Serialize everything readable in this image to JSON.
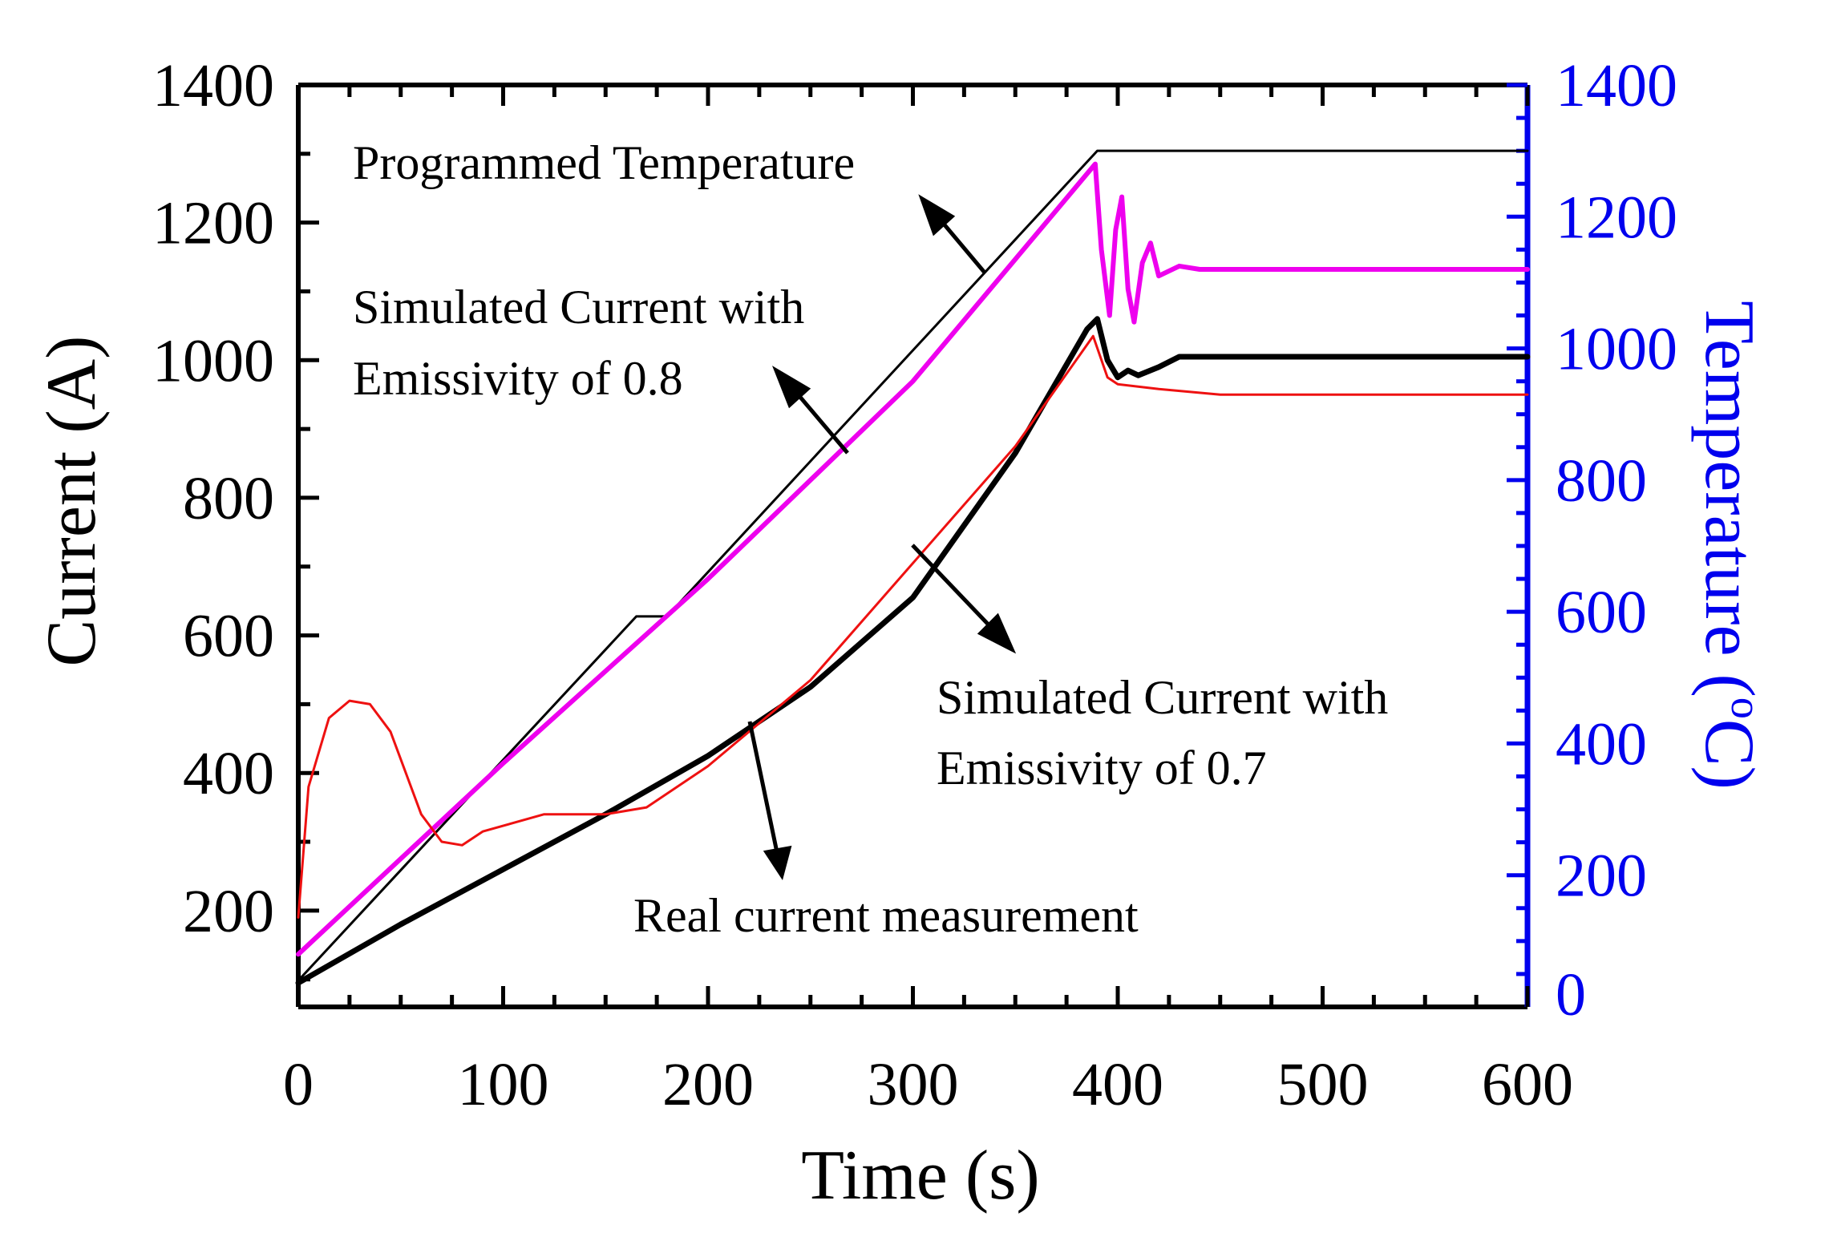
{
  "chart_data": {
    "type": "line",
    "xlabel": "Time (s)",
    "ylabel_left": "Current (A)",
    "ylabel_right_prefix": "Temperature (",
    "ylabel_right_sup": "o",
    "ylabel_right_suffix": "C)",
    "xlim": [
      0,
      600
    ],
    "ylim_left": [
      60,
      1400
    ],
    "ylim_right": [
      0,
      1400
    ],
    "x_ticks": [
      "0",
      "100",
      "200",
      "300",
      "400",
      "500",
      "600"
    ],
    "y_left_ticks": [
      "200",
      "400",
      "600",
      "800",
      "1000",
      "1200",
      "1400"
    ],
    "y_right_ticks": [
      "0",
      "200",
      "400",
      "600",
      "800",
      "1000",
      "1200",
      "1400"
    ],
    "colors": {
      "left_axis": "#000000",
      "right_axis": "#0000ee",
      "programmed": "#000000",
      "emissivity_08": "#ee00ee",
      "emissivity_07": "#000000",
      "real": "#ee1111"
    },
    "series": [
      {
        "name": "Programmed Temperature",
        "axis": "right",
        "x": [
          0,
          165,
          180,
          390,
          600
        ],
        "y": [
          40,
          593,
          593,
          1300,
          1300
        ]
      },
      {
        "name": "Simulated Current with Emissivity of 0.8",
        "axis": "right",
        "x": [
          0,
          100,
          200,
          300,
          389,
          392,
          396,
          399,
          402,
          405,
          408,
          412,
          416,
          420,
          430,
          440,
          600
        ],
        "y": [
          80,
          370,
          650,
          950,
          1280,
          1150,
          1050,
          1180,
          1230,
          1090,
          1040,
          1130,
          1160,
          1110,
          1125,
          1120,
          1120
        ]
      },
      {
        "name": "Simulated Current with Emissivity of 0.7",
        "axis": "left",
        "x": [
          0,
          50,
          100,
          150,
          200,
          250,
          300,
          350,
          385,
          390,
          395,
          400,
          405,
          410,
          420,
          430,
          600
        ],
        "y": [
          95,
          180,
          260,
          340,
          425,
          525,
          655,
          865,
          1045,
          1060,
          1000,
          975,
          985,
          978,
          990,
          1005,
          1005
        ]
      },
      {
        "name": "Real current measurement",
        "axis": "left",
        "x": [
          0,
          5,
          15,
          25,
          35,
          45,
          60,
          70,
          80,
          90,
          120,
          150,
          170,
          200,
          250,
          300,
          350,
          388,
          395,
          400,
          420,
          450,
          500,
          600
        ],
        "y": [
          190,
          380,
          480,
          505,
          500,
          460,
          340,
          300,
          295,
          315,
          340,
          340,
          350,
          410,
          535,
          705,
          875,
          1035,
          975,
          965,
          958,
          950,
          950,
          950
        ]
      }
    ],
    "annotations": {
      "programmed": [
        "Programmed Temperature"
      ],
      "emissivity_08": [
        "Simulated Current with",
        "Emissivity of 0.8"
      ],
      "emissivity_07": [
        "Simulated Current with",
        "Emissivity of 0.7"
      ],
      "real": [
        "Real current measurement"
      ]
    }
  }
}
